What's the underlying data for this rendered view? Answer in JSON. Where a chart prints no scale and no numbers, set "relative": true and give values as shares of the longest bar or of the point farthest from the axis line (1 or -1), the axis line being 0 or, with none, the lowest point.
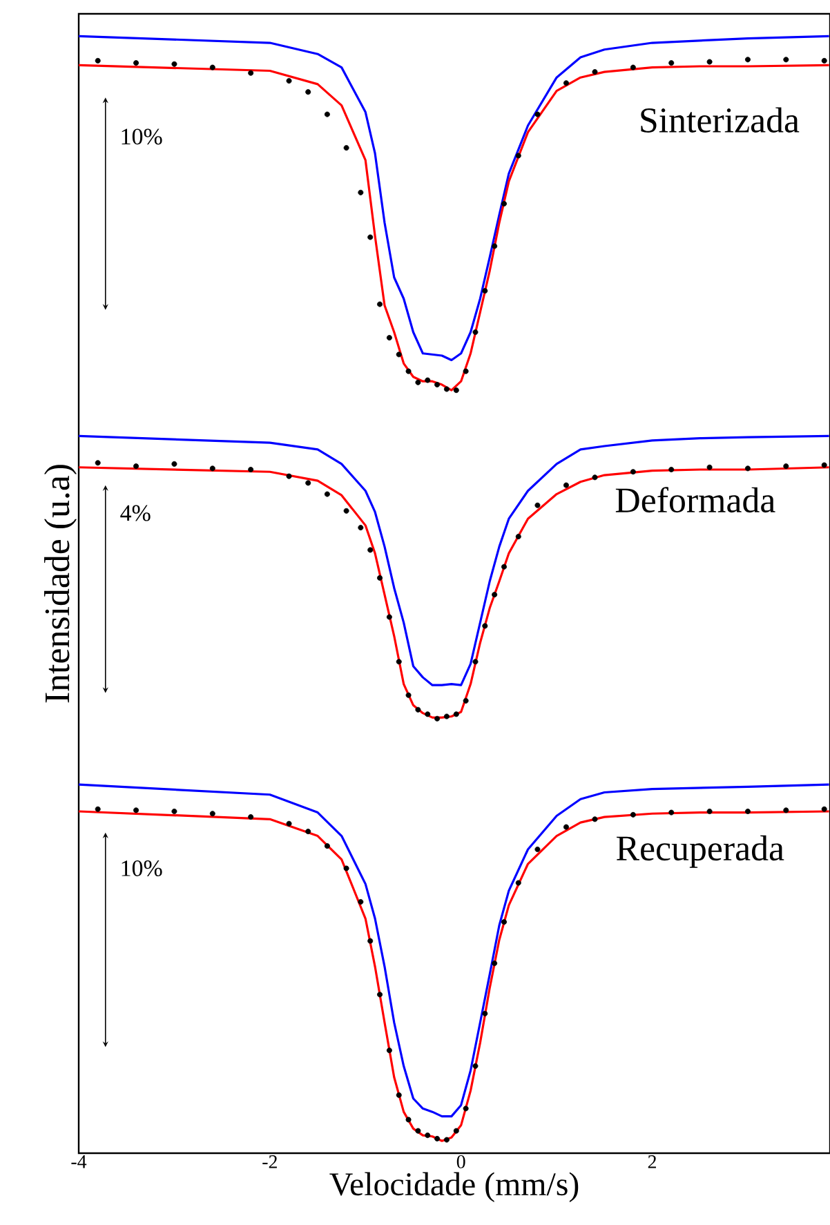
{
  "chart_data": {
    "type": "line",
    "xlabel": "Velocidade (mm/s)",
    "ylabel": "Intensidade (u.a)",
    "relative": true,
    "xlim": [
      -4,
      3.86
    ],
    "xticks": [
      -4,
      -2,
      0,
      2
    ],
    "annotations": [
      "Sinterizada",
      "10%",
      "Deformada",
      "4%",
      "Recuperada",
      "10%"
    ],
    "series": [
      {
        "type": "scatter",
        "marker": "circle",
        "color": "#000000",
        "x": [
          -3.8,
          -3.4,
          -3,
          -2.6,
          -2.2,
          -1.8,
          -1.6,
          -1.4,
          -1.2,
          -1.05,
          -0.95,
          -0.85,
          -0.75,
          -0.65,
          -0.55,
          -0.45,
          -0.35,
          -0.25,
          -0.15,
          -0.05,
          0.05,
          0.15,
          0.25,
          0.35,
          0.45,
          0.6,
          0.8,
          1.1,
          1.4,
          1.8,
          2.2,
          2.6,
          3.0,
          3.4,
          3.8
        ],
        "values": [
          0.978,
          0.976,
          0.975,
          0.972,
          0.967,
          0.96,
          0.95,
          0.93,
          0.9,
          0.86,
          0.82,
          0.76,
          0.73,
          0.715,
          0.7,
          0.69,
          0.692,
          0.688,
          0.684,
          0.683,
          0.7,
          0.735,
          0.772,
          0.812,
          0.85,
          0.893,
          0.93,
          0.958,
          0.968,
          0.972,
          0.976,
          0.977,
          0.979,
          0.979,
          0.978
        ]
      },
      {
        "color": "#0000ff",
        "x": [
          -4,
          -2,
          -1.5,
          -1.25,
          -1,
          -0.9,
          -0.8,
          -0.7,
          -0.6,
          -0.5,
          -0.4,
          -0.3,
          -0.2,
          -0.1,
          0,
          0.1,
          0.2,
          0.3,
          0.4,
          0.5,
          0.7,
          1,
          1.25,
          1.5,
          2,
          2.5,
          3,
          3.85
        ],
        "values": [
          1.0,
          0.994,
          0.984,
          0.972,
          0.932,
          0.895,
          0.833,
          0.784,
          0.765,
          0.735,
          0.716,
          0.715,
          0.714,
          0.71,
          0.716,
          0.735,
          0.765,
          0.802,
          0.84,
          0.877,
          0.92,
          0.963,
          0.981,
          0.988,
          0.994,
          0.996,
          0.998,
          1.0
        ]
      },
      {
        "color": "#ff0000",
        "x": [
          -4,
          -2,
          -1.5,
          -1.25,
          -1,
          -0.9,
          -0.8,
          -0.7,
          -0.6,
          -0.5,
          -0.4,
          -0.3,
          -0.2,
          -0.1,
          0,
          0.1,
          0.2,
          0.3,
          0.4,
          0.5,
          0.7,
          1,
          1.25,
          1.5,
          2,
          2.5,
          3,
          3.85
        ],
        "values": [
          0.974,
          0.969,
          0.957,
          0.938,
          0.889,
          0.821,
          0.759,
          0.735,
          0.707,
          0.695,
          0.691,
          0.691,
          0.688,
          0.683,
          0.691,
          0.716,
          0.753,
          0.79,
          0.833,
          0.87,
          0.914,
          0.951,
          0.963,
          0.968,
          0.972,
          0.973,
          0.973,
          0.974
        ]
      },
      {
        "type": "scatter",
        "marker": "circle",
        "color": "#000000",
        "x": [
          -3.8,
          -3.4,
          -3,
          -2.6,
          -2.2,
          -1.8,
          -1.6,
          -1.4,
          -1.2,
          -1.05,
          -0.95,
          -0.85,
          -0.75,
          -0.65,
          -0.55,
          -0.45,
          -0.35,
          -0.25,
          -0.15,
          -0.05,
          0.05,
          0.15,
          0.25,
          0.35,
          0.45,
          0.6,
          0.8,
          1.1,
          1.4,
          1.8,
          2.2,
          2.6,
          3.0,
          3.4,
          3.8
        ],
        "values": [
          0.618,
          0.615,
          0.617,
          0.613,
          0.612,
          0.606,
          0.6,
          0.59,
          0.575,
          0.56,
          0.54,
          0.515,
          0.48,
          0.44,
          0.41,
          0.397,
          0.393,
          0.389,
          0.391,
          0.393,
          0.405,
          0.44,
          0.472,
          0.5,
          0.525,
          0.552,
          0.58,
          0.598,
          0.605,
          0.61,
          0.612,
          0.614,
          0.613,
          0.615,
          0.616
        ]
      },
      {
        "color": "#0000ff",
        "x": [
          -4,
          -2,
          -1.5,
          -1.25,
          -1,
          -0.9,
          -0.8,
          -0.7,
          -0.6,
          -0.5,
          -0.4,
          -0.3,
          -0.2,
          -0.1,
          0,
          0.1,
          0.2,
          0.3,
          0.4,
          0.5,
          0.7,
          1,
          1.25,
          1.5,
          2,
          2.5,
          3,
          3.85
        ],
        "values": [
          0.642,
          0.636,
          0.63,
          0.617,
          0.593,
          0.574,
          0.543,
          0.506,
          0.475,
          0.436,
          0.426,
          0.419,
          0.419,
          0.42,
          0.419,
          0.438,
          0.475,
          0.512,
          0.543,
          0.568,
          0.593,
          0.617,
          0.63,
          0.633,
          0.638,
          0.64,
          0.641,
          0.642
        ]
      },
      {
        "color": "#ff0000",
        "x": [
          -4,
          -2,
          -1.5,
          -1.25,
          -1,
          -0.9,
          -0.8,
          -0.7,
          -0.6,
          -0.5,
          -0.4,
          -0.3,
          -0.2,
          -0.1,
          0,
          0.1,
          0.2,
          0.3,
          0.4,
          0.5,
          0.7,
          1,
          1.25,
          1.5,
          2,
          2.5,
          3,
          3.85
        ],
        "values": [
          0.614,
          0.61,
          0.602,
          0.589,
          0.562,
          0.537,
          0.5,
          0.463,
          0.42,
          0.401,
          0.394,
          0.39,
          0.39,
          0.391,
          0.395,
          0.42,
          0.457,
          0.488,
          0.512,
          0.537,
          0.568,
          0.59,
          0.601,
          0.607,
          0.611,
          0.612,
          0.612,
          0.614
        ]
      },
      {
        "type": "scatter",
        "marker": "circle",
        "color": "#000000",
        "x": [
          -3.8,
          -3.4,
          -3,
          -2.6,
          -2.2,
          -1.8,
          -1.6,
          -1.4,
          -1.2,
          -1.05,
          -0.95,
          -0.85,
          -0.75,
          -0.65,
          -0.55,
          -0.45,
          -0.35,
          -0.25,
          -0.15,
          -0.05,
          0.05,
          0.15,
          0.25,
          0.35,
          0.45,
          0.6,
          0.8,
          1.1,
          1.4,
          1.8,
          2.2,
          2.6,
          3.0,
          3.4,
          3.8
        ],
        "values": [
          0.308,
          0.307,
          0.306,
          0.304,
          0.301,
          0.295,
          0.288,
          0.275,
          0.255,
          0.225,
          0.19,
          0.142,
          0.092,
          0.052,
          0.03,
          0.02,
          0.016,
          0.013,
          0.012,
          0.02,
          0.04,
          0.078,
          0.125,
          0.17,
          0.207,
          0.242,
          0.272,
          0.292,
          0.299,
          0.303,
          0.305,
          0.306,
          0.306,
          0.307,
          0.308
        ]
      },
      {
        "color": "#0000ff",
        "x": [
          -4,
          -2,
          -1.5,
          -1.25,
          -1,
          -0.9,
          -0.8,
          -0.7,
          -0.6,
          -0.5,
          -0.4,
          -0.3,
          -0.2,
          -0.1,
          0,
          0.1,
          0.2,
          0.3,
          0.4,
          0.5,
          0.7,
          1,
          1.25,
          1.5,
          2,
          2.5,
          3,
          3.85
        ],
        "values": [
          0.33,
          0.321,
          0.305,
          0.284,
          0.241,
          0.21,
          0.167,
          0.117,
          0.078,
          0.049,
          0.04,
          0.037,
          0.033,
          0.033,
          0.043,
          0.074,
          0.117,
          0.16,
          0.204,
          0.235,
          0.272,
          0.302,
          0.317,
          0.323,
          0.326,
          0.327,
          0.328,
          0.33
        ]
      },
      {
        "color": "#ff0000",
        "x": [
          -4,
          -2,
          -1.5,
          -1.25,
          -1,
          -0.9,
          -0.8,
          -0.7,
          -0.6,
          -0.5,
          -0.4,
          -0.3,
          -0.2,
          -0.1,
          0,
          0.1,
          0.2,
          0.3,
          0.4,
          0.5,
          0.7,
          1,
          1.25,
          1.5,
          2,
          2.5,
          3,
          3.85
        ],
        "values": [
          0.306,
          0.299,
          0.284,
          0.263,
          0.21,
          0.167,
          0.117,
          0.068,
          0.037,
          0.022,
          0.016,
          0.015,
          0.011,
          0.014,
          0.025,
          0.056,
          0.099,
          0.148,
          0.191,
          0.222,
          0.259,
          0.284,
          0.296,
          0.301,
          0.304,
          0.305,
          0.305,
          0.306
        ]
      }
    ]
  }
}
